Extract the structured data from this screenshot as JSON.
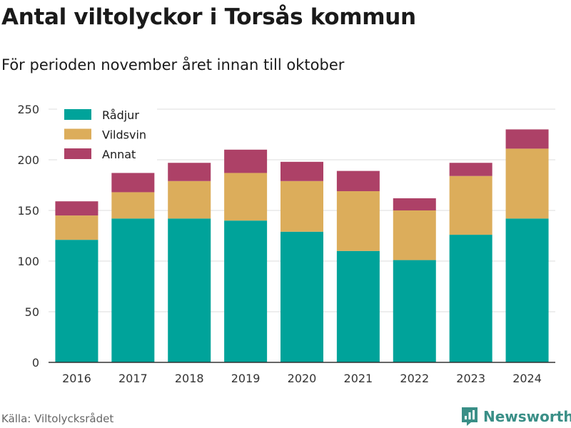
{
  "chart_data": {
    "type": "bar",
    "stacked": true,
    "title": "Antal viltolyckor i Torsås kommun",
    "subtitle": "För perioden november året innan till oktober",
    "categories": [
      "2016",
      "2017",
      "2018",
      "2019",
      "2020",
      "2021",
      "2022",
      "2023",
      "2024"
    ],
    "series": [
      {
        "name": "Rådjur",
        "color": "#00a39a",
        "values": [
          121,
          142,
          142,
          140,
          129,
          110,
          101,
          126,
          142
        ]
      },
      {
        "name": "Vildsvin",
        "color": "#dcad5b",
        "values": [
          24,
          26,
          37,
          47,
          50,
          59,
          49,
          58,
          69
        ]
      },
      {
        "name": "Annat",
        "color": "#ad4167",
        "values": [
          14,
          19,
          18,
          23,
          19,
          20,
          12,
          13,
          19
        ]
      }
    ],
    "ylim": [
      0,
      250
    ],
    "yticks": [
      0,
      50,
      100,
      150,
      200,
      250
    ],
    "grid": true,
    "legend_position": "top-left"
  },
  "source": "Källa: Viltolycksrådet",
  "brand": {
    "name": "Newsworthy",
    "icon": "newsworthy-logo-icon",
    "color": "#3a8f87"
  }
}
